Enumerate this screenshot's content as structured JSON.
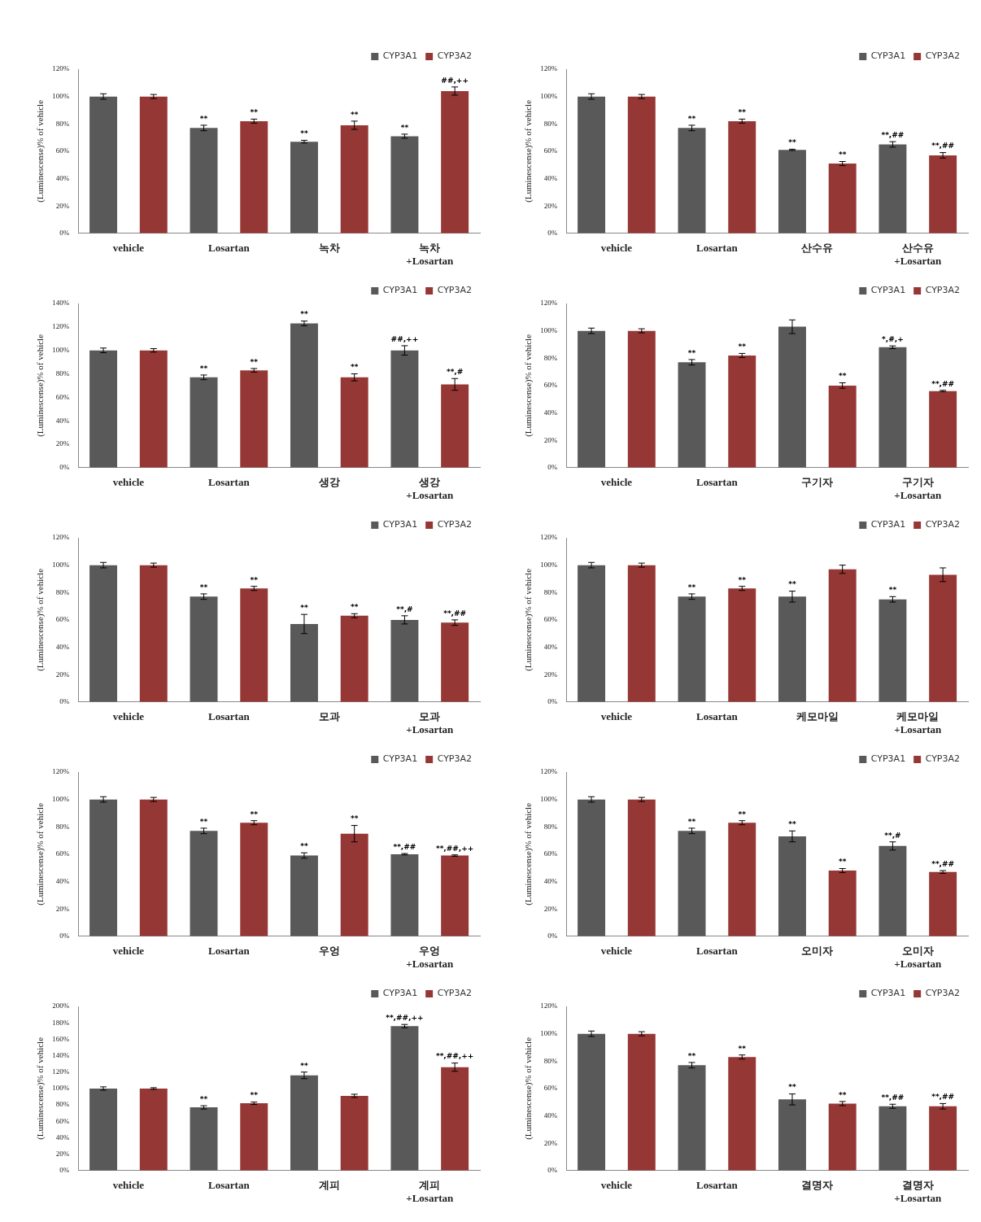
{
  "chart_data": [
    {
      "type": "bar",
      "ylabel": "(Luminescense)% of vehicle",
      "legend": "upper right",
      "grid": false,
      "categories": [
        "vehicle",
        "Losartan",
        "녹차",
        [
          "녹차",
          "+Losartan"
        ]
      ],
      "ylim": [
        0,
        120
      ],
      "yticks": [
        {
          "value": 0,
          "label": "0%"
        },
        {
          "value": 20,
          "label": "20%"
        },
        {
          "value": 40,
          "label": "40%"
        },
        {
          "value": 60,
          "label": "60%"
        },
        {
          "value": 80,
          "label": "80%"
        },
        {
          "value": 100,
          "label": "100%"
        },
        {
          "value": 120,
          "label": "120%"
        }
      ],
      "series": [
        {
          "name": "CYP3A1",
          "color": "#595959",
          "values": [
            100,
            77,
            67,
            71
          ],
          "errors": [
            2,
            2,
            1,
            1.5
          ],
          "annotations": [
            null,
            "**",
            "**",
            "**"
          ]
        },
        {
          "name": "CYP3A2",
          "color": "#953735",
          "values": [
            100,
            82,
            79,
            104
          ],
          "errors": [
            1.5,
            1.5,
            3,
            3
          ],
          "annotations": [
            null,
            "**",
            "**",
            "##,++"
          ]
        }
      ]
    },
    {
      "type": "bar",
      "ylabel": "(Luminescense)% of vehicle",
      "legend": "upper right",
      "grid": false,
      "categories": [
        "vehicle",
        "Losartan",
        "산수유",
        [
          "산수유",
          "+Losartan"
        ]
      ],
      "ylim": [
        0,
        120
      ],
      "yticks": [
        {
          "value": 0,
          "label": "0%"
        },
        {
          "value": 20,
          "label": "20%"
        },
        {
          "value": 40,
          "label": "40%"
        },
        {
          "value": 60,
          "label": "60%"
        },
        {
          "value": 80,
          "label": "80%"
        },
        {
          "value": 100,
          "label": "100%"
        },
        {
          "value": 120,
          "label": "120%"
        }
      ],
      "series": [
        {
          "name": "CYP3A1",
          "color": "#595959",
          "values": [
            100,
            77,
            61,
            65
          ],
          "errors": [
            2,
            2,
            0.5,
            2
          ],
          "annotations": [
            null,
            "**",
            "**",
            "**,##"
          ]
        },
        {
          "name": "CYP3A2",
          "color": "#953735",
          "values": [
            100,
            82,
            51,
            57
          ],
          "errors": [
            1.5,
            1.5,
            1.5,
            2
          ],
          "annotations": [
            null,
            "**",
            "**",
            "**,##"
          ]
        }
      ]
    },
    {
      "type": "bar",
      "ylabel": "(Luminescense)% of vehicle",
      "legend": "upper right",
      "grid": false,
      "categories": [
        "vehicle",
        "Losartan",
        "생강",
        [
          "생강",
          "+Losartan"
        ]
      ],
      "ylim": [
        0,
        140
      ],
      "yticks": [
        {
          "value": 0,
          "label": "0%"
        },
        {
          "value": 20,
          "label": "20%"
        },
        {
          "value": 40,
          "label": "40%"
        },
        {
          "value": 60,
          "label": "60%"
        },
        {
          "value": 80,
          "label": "80%"
        },
        {
          "value": 100,
          "label": "100%"
        },
        {
          "value": 120,
          "label": "120%"
        },
        {
          "value": 140,
          "label": "140%"
        }
      ],
      "series": [
        {
          "name": "CYP3A1",
          "color": "#595959",
          "values": [
            100,
            77,
            123,
            100
          ],
          "errors": [
            2,
            2,
            2,
            4
          ],
          "annotations": [
            null,
            "**",
            "**",
            "##,++"
          ]
        },
        {
          "name": "CYP3A2",
          "color": "#953735",
          "values": [
            100,
            83,
            77,
            71
          ],
          "errors": [
            1.5,
            1.5,
            3,
            5
          ],
          "annotations": [
            null,
            "**",
            "**",
            "**,#"
          ]
        }
      ]
    },
    {
      "type": "bar",
      "ylabel": "(Luminescense)% of vehicle",
      "legend": "upper right",
      "grid": false,
      "categories": [
        "vehicle",
        "Losartan",
        "구기자",
        [
          "구기자",
          "+Losartan"
        ]
      ],
      "ylim": [
        0,
        120
      ],
      "yticks": [
        {
          "value": 0,
          "label": "0%"
        },
        {
          "value": 20,
          "label": "20%"
        },
        {
          "value": 40,
          "label": "40%"
        },
        {
          "value": 60,
          "label": "60%"
        },
        {
          "value": 80,
          "label": "80%"
        },
        {
          "value": 100,
          "label": "100%"
        },
        {
          "value": 120,
          "label": "120%"
        }
      ],
      "series": [
        {
          "name": "CYP3A1",
          "color": "#595959",
          "values": [
            100,
            77,
            103,
            88
          ],
          "errors": [
            2,
            2,
            5,
            1
          ],
          "annotations": [
            null,
            "**",
            null,
            "*,#,+"
          ]
        },
        {
          "name": "CYP3A2",
          "color": "#953735",
          "values": [
            100,
            82,
            60,
            56
          ],
          "errors": [
            1.5,
            1.5,
            2,
            0.5
          ],
          "annotations": [
            null,
            "**",
            "**",
            "**,##"
          ]
        }
      ]
    },
    {
      "type": "bar",
      "ylabel": "(Luminescense)% of vehicle",
      "legend": "upper right",
      "grid": false,
      "categories": [
        "vehicle",
        "Losartan",
        "모과",
        [
          "모과",
          "+Losartan"
        ]
      ],
      "ylim": [
        0,
        120
      ],
      "yticks": [
        {
          "value": 0,
          "label": "0%"
        },
        {
          "value": 20,
          "label": "20%"
        },
        {
          "value": 40,
          "label": "40%"
        },
        {
          "value": 60,
          "label": "60%"
        },
        {
          "value": 80,
          "label": "80%"
        },
        {
          "value": 100,
          "label": "100%"
        },
        {
          "value": 120,
          "label": "120%"
        }
      ],
      "series": [
        {
          "name": "CYP3A1",
          "color": "#595959",
          "values": [
            100,
            77,
            57,
            60
          ],
          "errors": [
            2,
            2,
            7,
            3
          ],
          "annotations": [
            null,
            "**",
            "**",
            "**,#"
          ]
        },
        {
          "name": "CYP3A2",
          "color": "#953735",
          "values": [
            100,
            83,
            63,
            58
          ],
          "errors": [
            1.5,
            1.5,
            1.5,
            2
          ],
          "annotations": [
            null,
            "**",
            "**",
            "**,##"
          ]
        }
      ]
    },
    {
      "type": "bar",
      "ylabel": "(Luminescense)% of vehicle",
      "legend": "upper right",
      "grid": false,
      "categories": [
        "vehicle",
        "Losartan",
        "케모마일",
        [
          "케모마일",
          "+Losartan"
        ]
      ],
      "ylim": [
        0,
        120
      ],
      "yticks": [
        {
          "value": 0,
          "label": "0%"
        },
        {
          "value": 20,
          "label": "20%"
        },
        {
          "value": 40,
          "label": "40%"
        },
        {
          "value": 60,
          "label": "60%"
        },
        {
          "value": 80,
          "label": "80%"
        },
        {
          "value": 100,
          "label": "100%"
        },
        {
          "value": 120,
          "label": "120%"
        }
      ],
      "series": [
        {
          "name": "CYP3A1",
          "color": "#595959",
          "values": [
            100,
            77,
            77,
            75
          ],
          "errors": [
            2,
            2,
            4,
            2
          ],
          "annotations": [
            null,
            "**",
            "**",
            "**"
          ]
        },
        {
          "name": "CYP3A2",
          "color": "#953735",
          "values": [
            100,
            83,
            97,
            93
          ],
          "errors": [
            1.5,
            1.5,
            3,
            5
          ],
          "annotations": [
            null,
            "**",
            null,
            null
          ]
        }
      ]
    },
    {
      "type": "bar",
      "ylabel": "(Luminescense)% of vehicle",
      "legend": "upper right",
      "grid": false,
      "categories": [
        "vehicle",
        "Losartan",
        "우엉",
        [
          "우엉",
          "+Losartan"
        ]
      ],
      "ylim": [
        0,
        120
      ],
      "yticks": [
        {
          "value": 0,
          "label": "0%"
        },
        {
          "value": 20,
          "label": "20%"
        },
        {
          "value": 40,
          "label": "40%"
        },
        {
          "value": 60,
          "label": "60%"
        },
        {
          "value": 80,
          "label": "80%"
        },
        {
          "value": 100,
          "label": "100%"
        },
        {
          "value": 120,
          "label": "120%"
        }
      ],
      "series": [
        {
          "name": "CYP3A1",
          "color": "#595959",
          "values": [
            100,
            77,
            59,
            60
          ],
          "errors": [
            2,
            2,
            2,
            0.5
          ],
          "annotations": [
            null,
            "**",
            "**",
            "**,##"
          ]
        },
        {
          "name": "CYP3A2",
          "color": "#953735",
          "values": [
            100,
            83,
            75,
            59
          ],
          "errors": [
            1.5,
            1.5,
            6,
            0.5
          ],
          "annotations": [
            null,
            "**",
            "**",
            "**,##,++"
          ]
        }
      ]
    },
    {
      "type": "bar",
      "ylabel": "(Luminescense)% of vehicle",
      "legend": "upper right",
      "grid": false,
      "categories": [
        "vehicle",
        "Losartan",
        "오미자",
        [
          "오미자",
          "+Losartan"
        ]
      ],
      "ylim": [
        0,
        120
      ],
      "yticks": [
        {
          "value": 0,
          "label": "0%"
        },
        {
          "value": 20,
          "label": "20%"
        },
        {
          "value": 40,
          "label": "40%"
        },
        {
          "value": 60,
          "label": "60%"
        },
        {
          "value": 80,
          "label": "80%"
        },
        {
          "value": 100,
          "label": "100%"
        },
        {
          "value": 120,
          "label": "120%"
        }
      ],
      "series": [
        {
          "name": "CYP3A1",
          "color": "#595959",
          "values": [
            100,
            77,
            73,
            66
          ],
          "errors": [
            2,
            2,
            4,
            3
          ],
          "annotations": [
            null,
            "**",
            "**",
            "**,#"
          ]
        },
        {
          "name": "CYP3A2",
          "color": "#953735",
          "values": [
            100,
            83,
            48,
            47
          ],
          "errors": [
            1.5,
            1.5,
            1.5,
            1
          ],
          "annotations": [
            null,
            "**",
            "**",
            "**,##"
          ]
        }
      ]
    },
    {
      "type": "bar",
      "ylabel": "(Luminescense)% of vehicle",
      "legend": "upper right",
      "grid": false,
      "categories": [
        "vehicle",
        "Losartan",
        "계피",
        [
          "계피",
          "+Losartan"
        ]
      ],
      "ylim": [
        0,
        200
      ],
      "yticks": [
        {
          "value": 0,
          "label": "0%"
        },
        {
          "value": 20,
          "label": "20%"
        },
        {
          "value": 40,
          "label": "40%"
        },
        {
          "value": 60,
          "label": "60%"
        },
        {
          "value": 80,
          "label": "80%"
        },
        {
          "value": 100,
          "label": "100%"
        },
        {
          "value": 120,
          "label": "120%"
        },
        {
          "value": 140,
          "label": "140%"
        },
        {
          "value": 160,
          "label": "160%"
        },
        {
          "value": 180,
          "label": "180%"
        },
        {
          "value": 200,
          "label": "200%"
        }
      ],
      "series": [
        {
          "name": "CYP3A1",
          "color": "#595959",
          "values": [
            100,
            77,
            116,
            176
          ],
          "errors": [
            2,
            2,
            4,
            2
          ],
          "annotations": [
            null,
            "**",
            "**",
            "**,##,++"
          ]
        },
        {
          "name": "CYP3A2",
          "color": "#953735",
          "values": [
            100,
            82,
            91,
            126
          ],
          "errors": [
            1,
            1.5,
            2,
            5
          ],
          "annotations": [
            null,
            "**",
            null,
            "**,##,++"
          ]
        }
      ]
    },
    {
      "type": "bar",
      "ylabel": "(Luminescense)% of vehicle",
      "legend": "upper right",
      "grid": false,
      "categories": [
        "vehicle",
        "Losartan",
        "결명자",
        [
          "결명자",
          "+Losartan"
        ]
      ],
      "ylim": [
        0,
        120
      ],
      "yticks": [
        {
          "value": 0,
          "label": "0%"
        },
        {
          "value": 20,
          "label": "20%"
        },
        {
          "value": 40,
          "label": "40%"
        },
        {
          "value": 60,
          "label": "60%"
        },
        {
          "value": 80,
          "label": "80%"
        },
        {
          "value": 100,
          "label": "100%"
        },
        {
          "value": 120,
          "label": "120%"
        }
      ],
      "series": [
        {
          "name": "CYP3A1",
          "color": "#595959",
          "values": [
            100,
            77,
            52,
            47
          ],
          "errors": [
            2,
            2,
            4,
            1.5
          ],
          "annotations": [
            null,
            "**",
            "**",
            "**,##"
          ]
        },
        {
          "name": "CYP3A2",
          "color": "#953735",
          "values": [
            100,
            83,
            49,
            47
          ],
          "errors": [
            1.5,
            1.5,
            1.5,
            2
          ],
          "annotations": [
            null,
            "**",
            "**",
            "**,##"
          ]
        }
      ]
    }
  ]
}
